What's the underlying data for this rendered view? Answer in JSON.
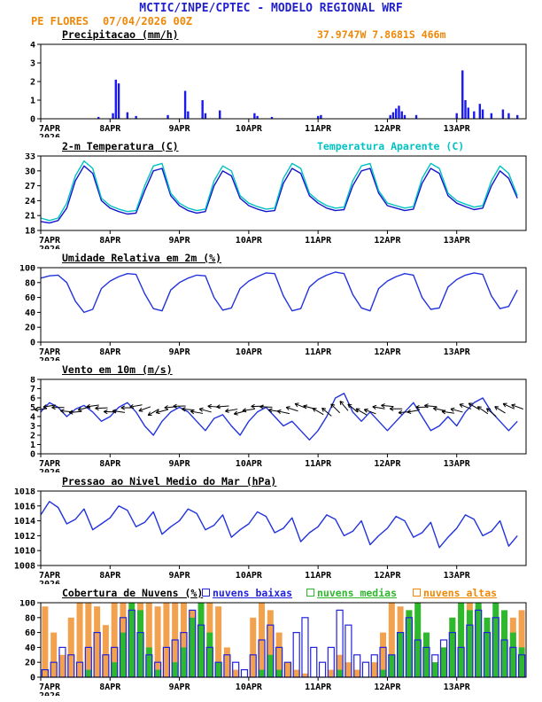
{
  "header": {
    "title": "MCTIC/INPE/CPTEC - MODELO REGIONAL WRF",
    "station": "PE FLORES",
    "run": "07/04/2026 00Z",
    "location": "37.9747W 7.8681S 466m"
  },
  "colors": {
    "header_blue": "#2222cc",
    "accent_orange": "#ef8807",
    "line_blue": "#2233dd",
    "cyan": "#00c2c2",
    "green": "#2eb82e",
    "cloud_orange": "#f2a24e"
  },
  "axis": {
    "hours": 168,
    "xticks": [
      {
        "h": 0,
        "label": "7APR",
        "sub": "2026"
      },
      {
        "h": 24,
        "label": "8APR"
      },
      {
        "h": 48,
        "label": "9APR"
      },
      {
        "h": 72,
        "label": "10APR"
      },
      {
        "h": 96,
        "label": "11APR"
      },
      {
        "h": 120,
        "label": "12APR"
      },
      {
        "h": 144,
        "label": "13APR"
      }
    ]
  },
  "chart_data": [
    {
      "id": "precipitation",
      "type": "bar",
      "kind": "bars",
      "title": "Precipitacao (mm/h)",
      "ylim": [
        0,
        4
      ],
      "yticks": [
        0,
        1,
        2,
        3,
        4
      ],
      "bar_color": "#1a1aee",
      "bars": [
        [
          20,
          0.1
        ],
        [
          25,
          0.3
        ],
        [
          26,
          2.1
        ],
        [
          27,
          1.9
        ],
        [
          30,
          0.35
        ],
        [
          33,
          0.15
        ],
        [
          44,
          0.2
        ],
        [
          50,
          1.5
        ],
        [
          51,
          0.4
        ],
        [
          56,
          1.0
        ],
        [
          57,
          0.3
        ],
        [
          62,
          0.45
        ],
        [
          74,
          0.3
        ],
        [
          75,
          0.15
        ],
        [
          80,
          0.1
        ],
        [
          96,
          0.15
        ],
        [
          97,
          0.2
        ],
        [
          121,
          0.2
        ],
        [
          122,
          0.35
        ],
        [
          123,
          0.55
        ],
        [
          124,
          0.7
        ],
        [
          125,
          0.4
        ],
        [
          126,
          0.2
        ],
        [
          130,
          0.2
        ],
        [
          144,
          0.3
        ],
        [
          146,
          2.6
        ],
        [
          147,
          1.0
        ],
        [
          148,
          0.6
        ],
        [
          150,
          0.4
        ],
        [
          152,
          0.8
        ],
        [
          153,
          0.5
        ],
        [
          156,
          0.3
        ],
        [
          160,
          0.5
        ],
        [
          162,
          0.3
        ],
        [
          165,
          0.2
        ]
      ]
    },
    {
      "id": "temperature-2m",
      "type": "line",
      "kind": "lines",
      "title": "2-m Temperatura (C)",
      "title2": "Temperatura Aparente (C)",
      "title2_color": "#00c2c2",
      "ylim": [
        18,
        33
      ],
      "yticks": [
        18,
        21,
        24,
        27,
        30,
        33
      ],
      "step_hours": 3,
      "series": [
        {
          "name": "2-m Temperatura",
          "color": "#1414cc",
          "values": [
            19.8,
            19.5,
            20.0,
            22.5,
            28.0,
            31.0,
            29.5,
            24.0,
            22.5,
            21.8,
            21.3,
            21.5,
            26.0,
            30.0,
            30.5,
            25.0,
            23.0,
            22.0,
            21.5,
            21.8,
            27.0,
            30.0,
            29.0,
            24.5,
            23.0,
            22.3,
            21.8,
            22.0,
            27.5,
            30.5,
            29.5,
            25.0,
            23.5,
            22.5,
            22.0,
            22.2,
            27.0,
            30.0,
            30.5,
            25.5,
            23.0,
            22.5,
            22.0,
            22.3,
            27.5,
            30.5,
            29.5,
            25.0,
            23.5,
            22.8,
            22.2,
            22.5,
            27.0,
            30.0,
            28.5,
            24.5
          ]
        },
        {
          "name": "Temperatura Aparente",
          "color": "#00c2c2",
          "values": [
            20.5,
            20.0,
            20.5,
            23.5,
            29.0,
            32.0,
            30.5,
            24.5,
            23.0,
            22.3,
            21.8,
            22.0,
            27.0,
            31.0,
            31.5,
            25.5,
            23.5,
            22.5,
            22.0,
            22.3,
            28.0,
            31.0,
            30.0,
            25.0,
            23.5,
            22.8,
            22.3,
            22.5,
            28.5,
            31.5,
            30.5,
            25.5,
            24.0,
            23.0,
            22.5,
            22.7,
            28.0,
            31.0,
            31.5,
            26.0,
            23.5,
            23.0,
            22.5,
            22.8,
            28.5,
            31.5,
            30.5,
            25.5,
            24.0,
            23.3,
            22.7,
            23.0,
            28.0,
            31.0,
            29.5,
            25.0
          ]
        }
      ]
    },
    {
      "id": "relative-humidity-2m",
      "type": "line",
      "kind": "lines",
      "title": "Umidade Relativa em 2m (%)",
      "ylim": [
        0,
        100
      ],
      "yticks": [
        0,
        20,
        40,
        60,
        80,
        100
      ],
      "step_hours": 3,
      "series": [
        {
          "name": "Umidade Relativa",
          "color": "#2233dd",
          "values": [
            86,
            89,
            90,
            80,
            55,
            40,
            44,
            72,
            82,
            88,
            92,
            91,
            65,
            45,
            42,
            70,
            80,
            86,
            90,
            89,
            60,
            43,
            46,
            72,
            82,
            88,
            93,
            92,
            62,
            42,
            45,
            74,
            84,
            90,
            94,
            92,
            64,
            46,
            42,
            72,
            82,
            88,
            92,
            90,
            60,
            44,
            46,
            74,
            84,
            90,
            93,
            91,
            62,
            45,
            48,
            70
          ]
        }
      ]
    },
    {
      "id": "wind-10m",
      "type": "line",
      "kind": "lines",
      "title": "Vento em 10m (m/s)",
      "ylim": [
        0,
        8
      ],
      "yticks": [
        0,
        1,
        2,
        3,
        4,
        5,
        6,
        7,
        8
      ],
      "step_hours": 3,
      "series": [
        {
          "name": "Vento 10m",
          "color": "#2233dd",
          "values": [
            4.5,
            5.5,
            5.0,
            4.0,
            4.8,
            5.2,
            4.5,
            3.5,
            4.0,
            5.0,
            5.5,
            4.5,
            3.0,
            2.0,
            3.5,
            4.5,
            5.0,
            4.5,
            3.5,
            2.5,
            3.8,
            4.2,
            3.0,
            2.0,
            3.5,
            4.5,
            5.0,
            4.0,
            3.0,
            3.5,
            2.5,
            1.5,
            2.5,
            4.0,
            6.0,
            6.5,
            4.5,
            3.5,
            4.5,
            3.5,
            2.5,
            3.5,
            4.5,
            5.5,
            4.0,
            2.5,
            3.0,
            4.0,
            3.0,
            4.5,
            5.5,
            6.0,
            4.5,
            3.5,
            2.5,
            3.5
          ]
        }
      ],
      "barbs": {
        "level": 4.8,
        "length": 14,
        "color": "#000000",
        "angles": [
          185,
          190,
          180,
          175,
          185,
          195,
          188,
          182,
          178,
          172,
          180,
          190,
          200,
          210,
          195,
          185,
          182,
          176,
          170,
          165,
          175,
          185,
          190,
          195,
          188,
          182,
          178,
          172,
          168,
          162,
          158,
          165,
          150,
          140,
          135,
          130,
          140,
          150,
          160,
          170,
          175,
          180,
          185,
          190,
          182,
          174,
          168,
          172,
          165,
          158,
          150,
          145,
          140,
          148,
          155,
          160
        ]
      }
    },
    {
      "id": "mean-sea-level-pressure",
      "type": "line",
      "kind": "lines",
      "title": "Pressao ao Nivel Medio do Mar (hPa)",
      "ylim": [
        1008,
        1018
      ],
      "yticks": [
        1008,
        1010,
        1012,
        1014,
        1016,
        1018
      ],
      "step_hours": 3,
      "series": [
        {
          "name": "Pressao",
          "color": "#2233dd",
          "values": [
            1014.8,
            1016.6,
            1015.8,
            1013.6,
            1014.2,
            1015.6,
            1012.8,
            1013.6,
            1014.4,
            1016.0,
            1015.4,
            1013.2,
            1013.8,
            1015.2,
            1012.2,
            1013.2,
            1014.0,
            1015.6,
            1015.0,
            1012.8,
            1013.4,
            1014.8,
            1011.8,
            1012.8,
            1013.6,
            1015.2,
            1014.6,
            1012.4,
            1013.0,
            1014.4,
            1011.2,
            1012.4,
            1013.2,
            1014.8,
            1014.2,
            1012.0,
            1012.6,
            1014.0,
            1010.8,
            1012.0,
            1013.0,
            1014.6,
            1014.0,
            1011.8,
            1012.4,
            1013.8,
            1010.4,
            1011.8,
            1013.0,
            1014.8,
            1014.2,
            1012.0,
            1012.6,
            1014.0,
            1010.6,
            1012.0
          ]
        }
      ]
    },
    {
      "id": "cloud-cover",
      "type": "bar",
      "kind": "cloudbars",
      "title": "Cobertura de Nuvens (%)",
      "ylim": [
        0,
        100
      ],
      "yticks": [
        0,
        20,
        40,
        60,
        80,
        100
      ],
      "step_hours": 3,
      "legend": [
        {
          "label": "nuvens baixas",
          "color": "#2222dd"
        },
        {
          "label": "nuvens medias",
          "color": "#2eb82e"
        },
        {
          "label": "nuvens altas",
          "color": "#ef8807"
        }
      ],
      "series": [
        {
          "name": "nuvens altas",
          "style": "fill",
          "color": "#f2a24e",
          "values": [
            95,
            60,
            30,
            80,
            100,
            100,
            95,
            70,
            100,
            100,
            90,
            100,
            100,
            95,
            100,
            100,
            100,
            90,
            60,
            100,
            95,
            40,
            10,
            0,
            80,
            100,
            90,
            60,
            20,
            10,
            5,
            0,
            0,
            10,
            30,
            20,
            10,
            0,
            20,
            60,
            100,
            95,
            90,
            60,
            30,
            20,
            40,
            80,
            90,
            100,
            95,
            70,
            40,
            60,
            80,
            90
          ]
        },
        {
          "name": "nuvens medias",
          "style": "fill",
          "color": "#2eb82e",
          "values": [
            0,
            0,
            0,
            0,
            0,
            10,
            0,
            0,
            20,
            60,
            100,
            90,
            40,
            10,
            0,
            20,
            40,
            80,
            100,
            60,
            20,
            0,
            0,
            0,
            0,
            10,
            30,
            10,
            0,
            0,
            0,
            0,
            0,
            0,
            10,
            0,
            0,
            0,
            0,
            10,
            30,
            60,
            90,
            100,
            60,
            20,
            40,
            80,
            100,
            90,
            100,
            80,
            100,
            90,
            60,
            40
          ]
        },
        {
          "name": "nuvens baixas",
          "style": "outline",
          "color": "#2222dd",
          "values": [
            10,
            20,
            40,
            30,
            20,
            40,
            60,
            30,
            40,
            80,
            90,
            60,
            30,
            20,
            40,
            50,
            60,
            90,
            70,
            40,
            20,
            30,
            20,
            10,
            30,
            50,
            70,
            40,
            20,
            60,
            80,
            40,
            20,
            40,
            90,
            70,
            30,
            20,
            30,
            40,
            30,
            60,
            80,
            50,
            40,
            30,
            50,
            60,
            40,
            70,
            90,
            60,
            80,
            50,
            40,
            30
          ]
        }
      ]
    }
  ]
}
